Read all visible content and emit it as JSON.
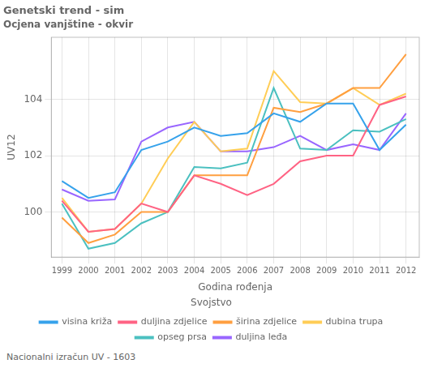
{
  "chart_data": {
    "type": "line",
    "title": "Genetski trend - sim",
    "subtitle": "Ocjena vanjštine - okvir",
    "xlabel": "Godina rođenja",
    "ylabel": "UV12",
    "annotations": [
      "Nacionalni izračun UV - 1603"
    ],
    "legend_title": "Svojstvo",
    "legend": "bottom",
    "grid": true,
    "x": [
      1999,
      2000,
      2001,
      2002,
      2003,
      2004,
      2005,
      2006,
      2007,
      2008,
      2009,
      2010,
      2011,
      2012
    ],
    "xlim": [
      1998.6,
      2012.5
    ],
    "xticks": [
      1999,
      2000,
      2001,
      2002,
      2003,
      2004,
      2005,
      2006,
      2007,
      2008,
      2009,
      2010,
      2011,
      2012
    ],
    "ylim": [
      98.4,
      106.2
    ],
    "yticks": [
      100,
      102,
      104
    ],
    "series": [
      {
        "name": "visina križa",
        "values": [
          101.1,
          100.5,
          100.7,
          102.2,
          102.5,
          103.0,
          102.7,
          102.8,
          103.5,
          103.2,
          103.85,
          103.85,
          102.2,
          103.1
        ]
      },
      {
        "name": "duljina zdjelice",
        "values": [
          100.4,
          99.3,
          99.4,
          100.3,
          100.0,
          101.3,
          101.0,
          100.6,
          101.0,
          101.8,
          102.0,
          102.0,
          103.8,
          104.1
        ]
      },
      {
        "name": "širina zdjelice",
        "values": [
          99.8,
          98.9,
          99.2,
          100.0,
          100.0,
          101.3,
          101.3,
          101.3,
          103.7,
          103.55,
          103.85,
          104.4,
          104.4,
          105.6
        ]
      },
      {
        "name": "dubina trupa",
        "values": [
          100.5,
          99.3,
          99.4,
          100.3,
          101.9,
          103.2,
          102.15,
          102.25,
          105.0,
          103.9,
          103.85,
          104.4,
          103.8,
          104.2
        ]
      },
      {
        "name": "opseg prsa",
        "values": [
          100.3,
          98.7,
          98.9,
          99.6,
          100.0,
          101.6,
          101.55,
          101.75,
          104.4,
          102.25,
          102.2,
          102.9,
          102.85,
          103.3
        ]
      },
      {
        "name": "duljina leđa",
        "values": [
          100.8,
          100.4,
          100.45,
          102.5,
          103.0,
          103.2,
          102.15,
          102.15,
          102.3,
          102.7,
          102.2,
          102.4,
          102.2,
          103.5
        ]
      }
    ]
  }
}
